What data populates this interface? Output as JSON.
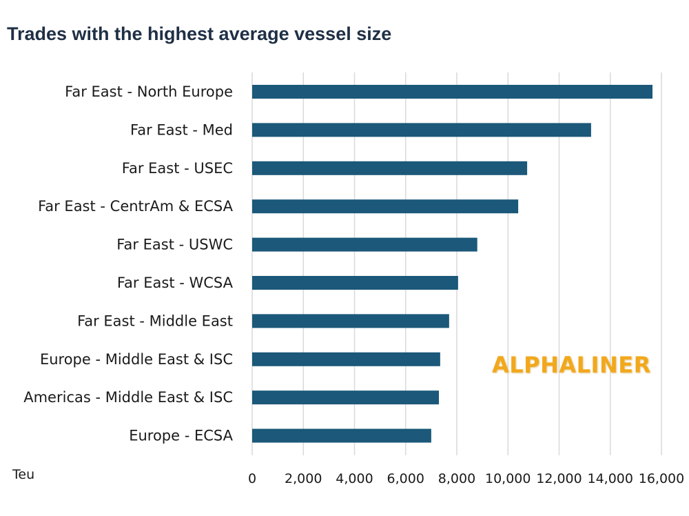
{
  "chart_data": {
    "type": "bar",
    "orientation": "horizontal",
    "title": "Trades with the highest average vessel size",
    "xlabel": "Teu",
    "ylabel": "",
    "xlim": [
      0,
      16000
    ],
    "xticks": [
      0,
      2000,
      4000,
      6000,
      8000,
      10000,
      12000,
      14000,
      16000
    ],
    "tick_labels": [
      "0",
      "2,000",
      "4,000",
      "6,000",
      "8,000",
      "10,000",
      "12,000",
      "14,000",
      "16,000"
    ],
    "grid": true,
    "categories": [
      "Far East - North Europe",
      "Far East - Med",
      "Far East - USEC",
      "Far East - CentrAm & ECSA",
      "Far East - USWC",
      "Far East - WCSA",
      "Far East - Middle East",
      "Europe - Middle East & ISC",
      "Americas - Middle East & ISC",
      "Europe - ECSA"
    ],
    "values": [
      15650,
      13250,
      10750,
      10400,
      8800,
      8050,
      7700,
      7350,
      7300,
      7000
    ],
    "bar_color": "#1b5879"
  },
  "watermark": "ALPHALINER"
}
